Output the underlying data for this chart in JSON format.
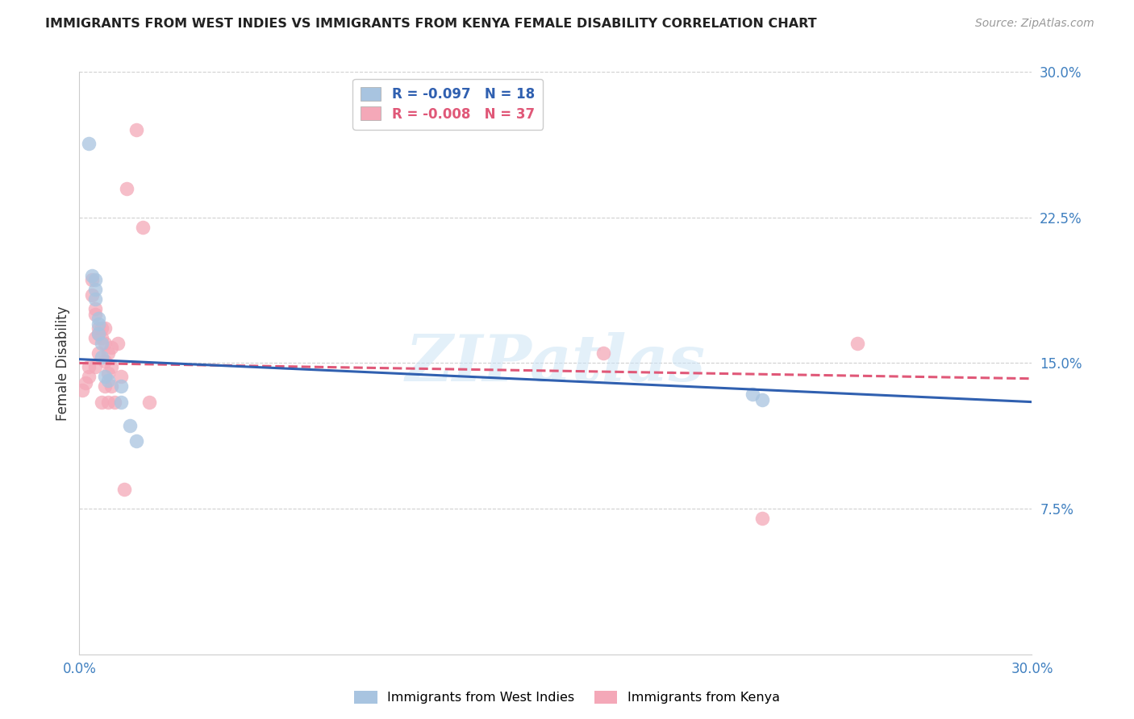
{
  "title": "IMMIGRANTS FROM WEST INDIES VS IMMIGRANTS FROM KENYA FEMALE DISABILITY CORRELATION CHART",
  "source": "Source: ZipAtlas.com",
  "ylabel": "Female Disability",
  "xlim": [
    0,
    0.3
  ],
  "ylim": [
    0,
    0.3
  ],
  "xticks": [
    0.0,
    0.05,
    0.1,
    0.15,
    0.2,
    0.25,
    0.3
  ],
  "yticks": [
    0.075,
    0.15,
    0.225,
    0.3
  ],
  "blue_R": "-0.097",
  "blue_N": "18",
  "pink_R": "-0.008",
  "pink_N": "37",
  "blue_color": "#a8c4e0",
  "pink_color": "#f4a8b8",
  "blue_line_color": "#3060b0",
  "pink_line_color": "#e05878",
  "watermark": "ZIPatlas",
  "blue_x": [
    0.003,
    0.004,
    0.005,
    0.005,
    0.005,
    0.006,
    0.006,
    0.006,
    0.007,
    0.007,
    0.008,
    0.009,
    0.013,
    0.013,
    0.016,
    0.018,
    0.212,
    0.215
  ],
  "blue_y": [
    0.263,
    0.195,
    0.193,
    0.188,
    0.183,
    0.173,
    0.17,
    0.165,
    0.16,
    0.153,
    0.143,
    0.141,
    0.138,
    0.13,
    0.118,
    0.11,
    0.134,
    0.131
  ],
  "pink_x": [
    0.001,
    0.002,
    0.003,
    0.003,
    0.004,
    0.004,
    0.005,
    0.005,
    0.005,
    0.005,
    0.006,
    0.006,
    0.006,
    0.007,
    0.007,
    0.007,
    0.008,
    0.008,
    0.008,
    0.008,
    0.009,
    0.009,
    0.009,
    0.01,
    0.01,
    0.01,
    0.011,
    0.012,
    0.013,
    0.014,
    0.015,
    0.018,
    0.02,
    0.022,
    0.165,
    0.215,
    0.245
  ],
  "pink_y": [
    0.136,
    0.14,
    0.148,
    0.143,
    0.185,
    0.193,
    0.178,
    0.175,
    0.163,
    0.148,
    0.168,
    0.165,
    0.155,
    0.168,
    0.163,
    0.13,
    0.168,
    0.16,
    0.151,
    0.138,
    0.155,
    0.145,
    0.13,
    0.158,
    0.148,
    0.138,
    0.13,
    0.16,
    0.143,
    0.085,
    0.24,
    0.27,
    0.22,
    0.13,
    0.155,
    0.07,
    0.16
  ],
  "blue_line_start_y": 0.152,
  "blue_line_end_y": 0.13,
  "pink_line_start_y": 0.15,
  "pink_line_end_y": 0.142,
  "background_color": "#ffffff",
  "grid_color": "#d0d0d0"
}
